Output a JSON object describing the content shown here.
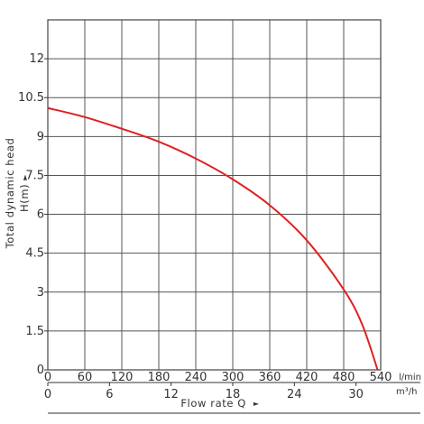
{
  "chart_data": {
    "type": "line",
    "title": "",
    "ylabel": "Total dynamic head",
    "ylabel_sub": "H(m)",
    "y_arrow": "►",
    "xlabel": "Flow rate Q",
    "x_arrow": "►",
    "x_unit": "l/min",
    "x2_unit": "m³/h",
    "xlim": [
      0,
      540
    ],
    "ylim": [
      0,
      13.5
    ],
    "grid": true,
    "y_ticks": [
      "0",
      "1.5",
      "3",
      "4.5",
      "6",
      "7.5",
      "9",
      "10.5",
      "12"
    ],
    "x_ticks": [
      "0",
      "60",
      "120",
      "180",
      "240",
      "300",
      "360",
      "420",
      "480",
      "540"
    ],
    "x2_ticks": [
      "0",
      "6",
      "12",
      "18",
      "24",
      "30"
    ],
    "series": [
      {
        "name": "",
        "color": "#e02020",
        "x": [
          0,
          60,
          120,
          180,
          240,
          300,
          360,
          420,
          480,
          510,
          535
        ],
        "y": [
          10.1,
          9.75,
          9.3,
          8.8,
          8.15,
          7.35,
          6.35,
          5.0,
          3.1,
          1.75,
          0
        ]
      }
    ]
  }
}
